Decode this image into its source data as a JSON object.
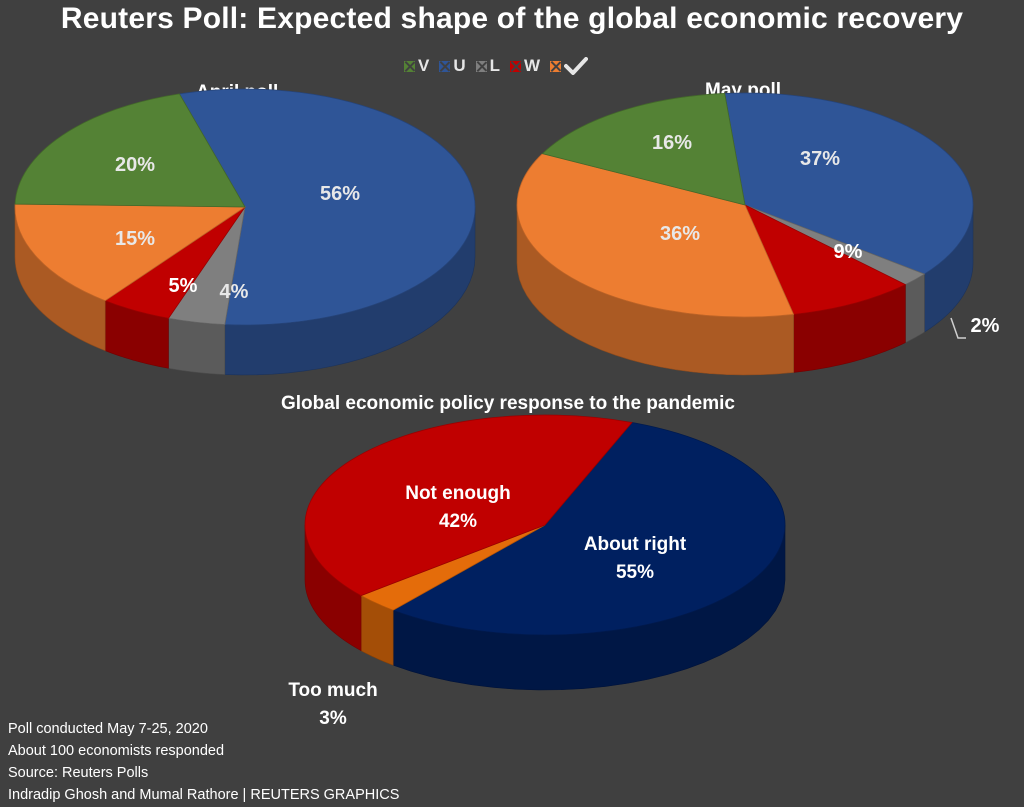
{
  "title": "Reuters Poll: Expected shape of the global economic recovery",
  "legend": [
    {
      "label": "V",
      "color": "#548235"
    },
    {
      "label": "U",
      "color": "#2f5597"
    },
    {
      "label": "L",
      "color": "#7f7f7f"
    },
    {
      "label": "W",
      "color": "#c00000"
    },
    {
      "label": "",
      "color": "#ed7d31",
      "icon": "checkmark-icon"
    }
  ],
  "chart_data": [
    {
      "type": "pie",
      "title": "April poll",
      "slices": [
        {
          "category": "U",
          "value": 56,
          "label": "56%",
          "color": "#2f5597"
        },
        {
          "category": "L",
          "value": 4,
          "label": "4%",
          "color": "#7f7f7f"
        },
        {
          "category": "W",
          "value": 5,
          "label": "5%",
          "color": "#c00000"
        },
        {
          "category": "Checkmark",
          "value": 15,
          "label": "15%",
          "color": "#ed7d31"
        },
        {
          "category": "V",
          "value": 20,
          "label": "20%",
          "color": "#548235"
        }
      ]
    },
    {
      "type": "pie",
      "title": "May poll",
      "slices": [
        {
          "category": "U",
          "value": 37,
          "label": "37%",
          "color": "#2f5597"
        },
        {
          "category": "L",
          "value": 2,
          "label": "2%",
          "color": "#7f7f7f"
        },
        {
          "category": "W",
          "value": 9,
          "label": "9%",
          "color": "#c00000"
        },
        {
          "category": "Checkmark",
          "value": 36,
          "label": "36%",
          "color": "#ed7d31"
        },
        {
          "category": "V",
          "value": 16,
          "label": "16%",
          "color": "#548235"
        }
      ]
    },
    {
      "type": "pie",
      "title": "Global economic policy response to the pandemic",
      "slices": [
        {
          "category": "About right",
          "value": 55,
          "label": "About right\n55%",
          "color": "#002060"
        },
        {
          "category": "Too much",
          "value": 3,
          "label": "Too much\n3%",
          "color": "#e46c0a"
        },
        {
          "category": "Not enough",
          "value": 42,
          "label": "Not enough\n42%",
          "color": "#c00000"
        }
      ]
    }
  ],
  "footer": [
    "Poll conducted May 7-25, 2020",
    "About 100 economists responded",
    "Source: Reuters Polls",
    "Indradip Ghosh and Mumal Rathore | REUTERS GRAPHICS"
  ]
}
